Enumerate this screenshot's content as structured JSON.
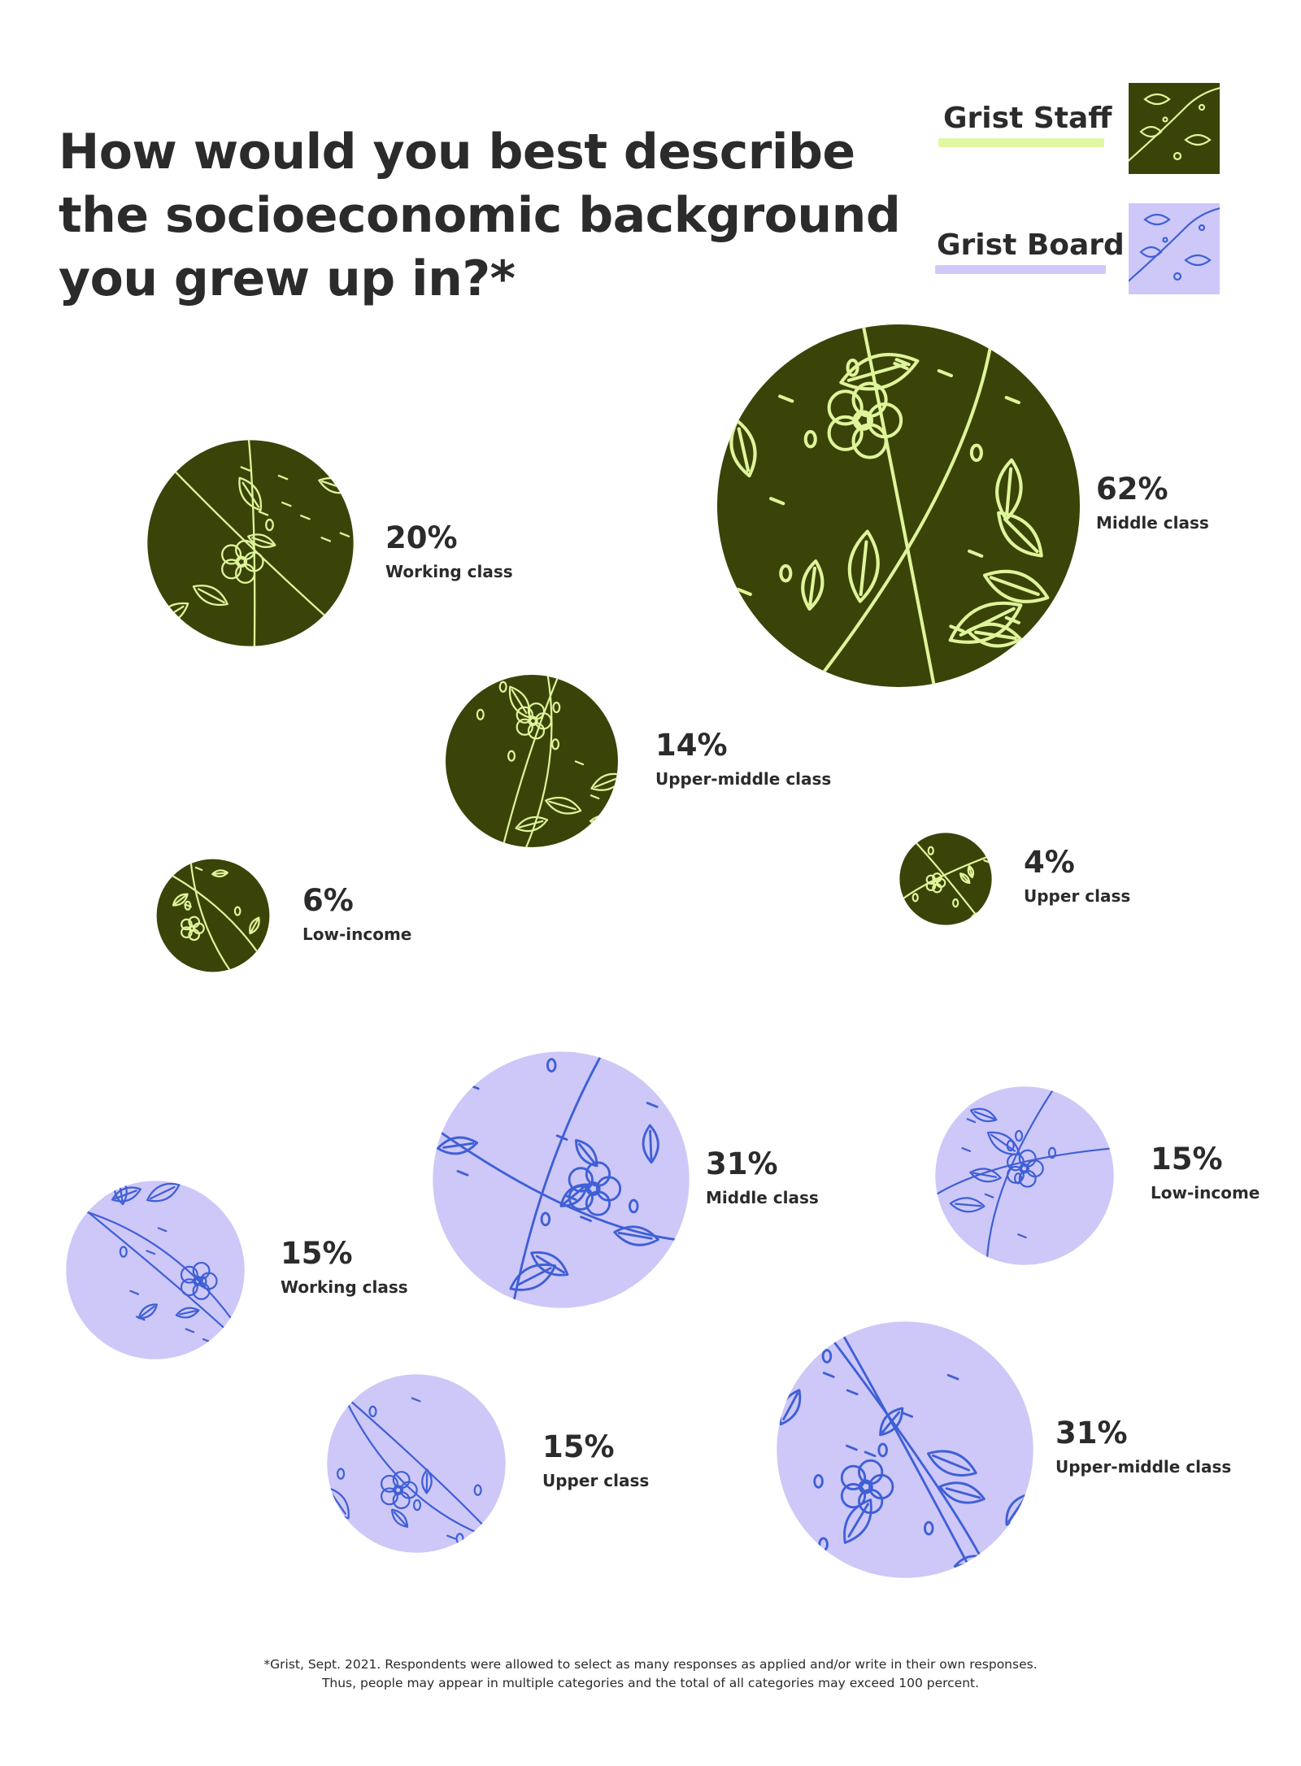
{
  "title_lines": [
    "How would you best describe",
    "the socioeconomic background",
    "you grew up in?*"
  ],
  "legend": {
    "staff_label": "Grist Staff",
    "board_label": "Grist Board"
  },
  "colors": {
    "staff_fill": "#3a4409",
    "staff_line": "#dff59a",
    "staff_underline": "#e1f7a3",
    "board_fill": "#cdc8f8",
    "board_line": "#3f5fd6",
    "board_underline": "#cfc9f9",
    "text": "#2b2b2b"
  },
  "chart_data": {
    "type": "bubble",
    "title": "How would you best describe the socioeconomic background you grew up in?*",
    "unit": "%",
    "series": [
      {
        "name": "Grist Staff",
        "points": [
          {
            "category": "Working class",
            "value": 20,
            "label": "20%"
          },
          {
            "category": "Middle class",
            "value": 62,
            "label": "62%"
          },
          {
            "category": "Upper-middle class",
            "value": 14,
            "label": "14%"
          },
          {
            "category": "Low-income",
            "value": 6,
            "label": "6%"
          },
          {
            "category": "Upper class",
            "value": 4,
            "label": "4%"
          }
        ]
      },
      {
        "name": "Grist Board",
        "points": [
          {
            "category": "Middle class",
            "value": 31,
            "label": "31%"
          },
          {
            "category": "Low-income",
            "value": 15,
            "label": "15%"
          },
          {
            "category": "Working class",
            "value": 15,
            "label": "15%"
          },
          {
            "category": "Upper class",
            "value": 15,
            "label": "15%"
          },
          {
            "category": "Upper-middle class",
            "value": 31,
            "label": "31%"
          }
        ]
      }
    ]
  },
  "footnote_lines": [
    "*Grist, Sept. 2021. Respondents were allowed to select as many responses as applied and/or write in their own responses.",
    "Thus, people may appear in multiple categories and the total of all categories may exceed 100 percent."
  ]
}
